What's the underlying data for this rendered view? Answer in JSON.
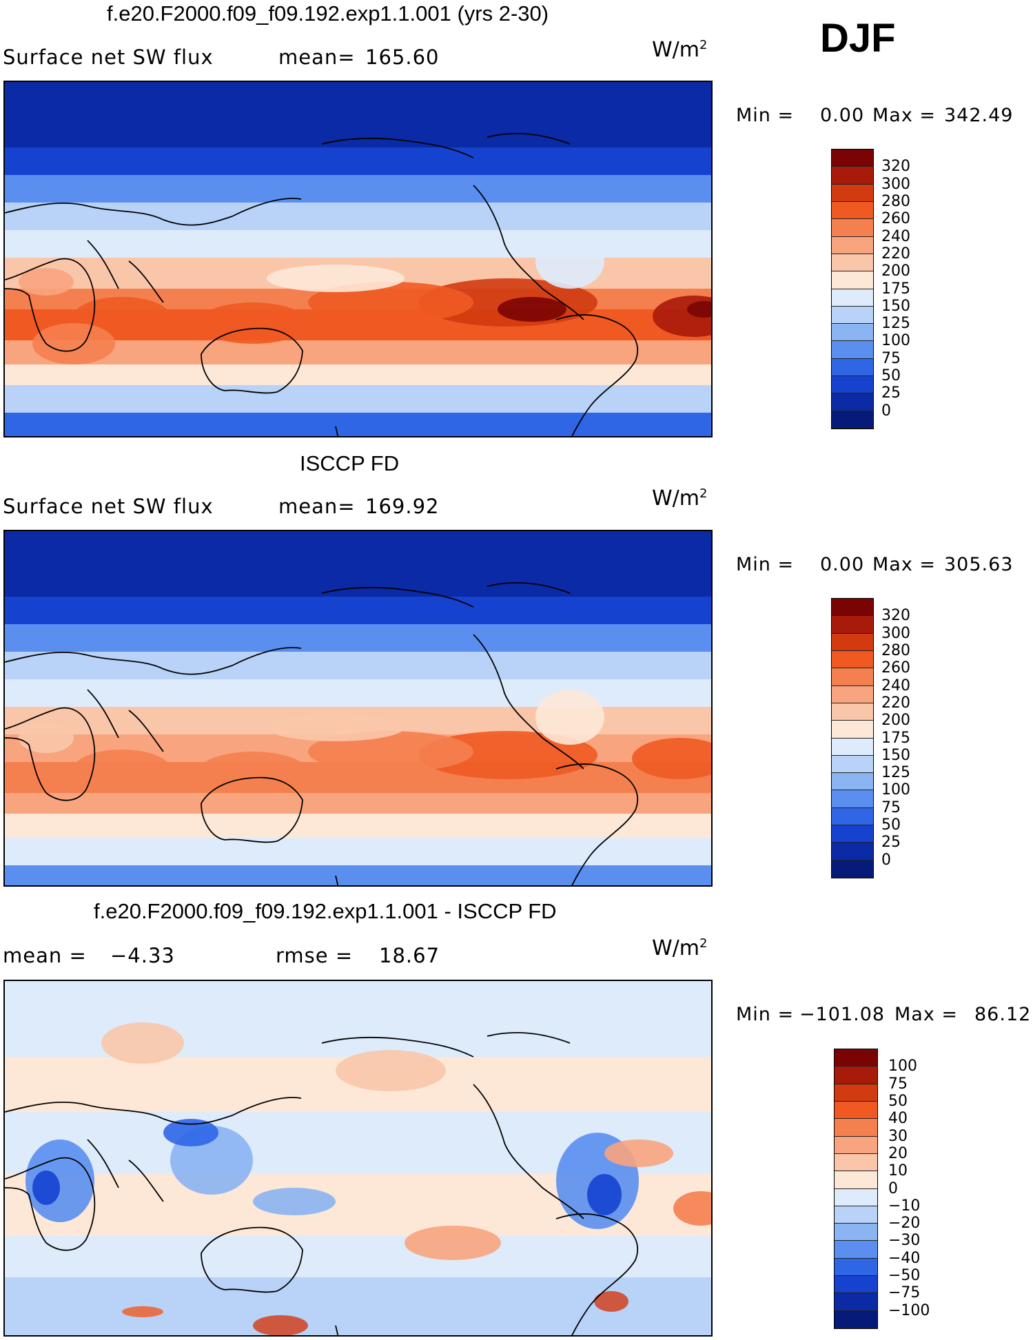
{
  "season": "DJF",
  "chart_data": [
    {
      "type": "heatmap",
      "title": "f.e20.F2000.f09_f09.192.exp1.1.001 (yrs 2-30)",
      "variable": "Surface net SW flux",
      "mean_label": "mean=",
      "mean": "165.60",
      "units_base": "W/m",
      "units_exp": "2",
      "min_label": "Min =",
      "min": "0.00",
      "max_label": "Max =",
      "max": "342.49",
      "colorbar_levels": [
        "320",
        "300",
        "280",
        "260",
        "240",
        "220",
        "200",
        "175",
        "150",
        "125",
        "100",
        "75",
        "50",
        "25",
        "0"
      ]
    },
    {
      "type": "heatmap",
      "title": "ISCCP FD",
      "variable": "Surface net SW flux",
      "mean_label": "mean=",
      "mean": "169.92",
      "units_base": "W/m",
      "units_exp": "2",
      "min_label": "Min =",
      "min": "0.00",
      "max_label": "Max =",
      "max": "305.63",
      "colorbar_levels": [
        "320",
        "300",
        "280",
        "260",
        "240",
        "220",
        "200",
        "175",
        "150",
        "125",
        "100",
        "75",
        "50",
        "25",
        "0"
      ]
    },
    {
      "type": "heatmap",
      "title": "f.e20.F2000.f09_f09.192.exp1.1.001 - ISCCP FD",
      "mean_label": "mean =",
      "mean": "−4.33",
      "rmse_label": "rmse =",
      "rmse": "18.67",
      "units_base": "W/m",
      "units_exp": "2",
      "min_label": "Min =",
      "min": "−101.08",
      "max_label": "Max =",
      "max": "86.12",
      "colorbar_levels": [
        "100",
        "75",
        "50",
        "40",
        "30",
        "20",
        "10",
        "0",
        "−10",
        "−20",
        "−30",
        "−40",
        "−50",
        "−75",
        "−100"
      ]
    }
  ],
  "colors": {
    "scale": [
      "#7a0403",
      "#a81a0a",
      "#d23a10",
      "#f05a22",
      "#f5804f",
      "#f8a47e",
      "#fac6aa",
      "#fde8d8",
      "#deebfb",
      "#b8d3f7",
      "#8ab4f2",
      "#5a8ff0",
      "#2f66e6",
      "#1642d0",
      "#0b2aa5",
      "#061a7a"
    ]
  }
}
